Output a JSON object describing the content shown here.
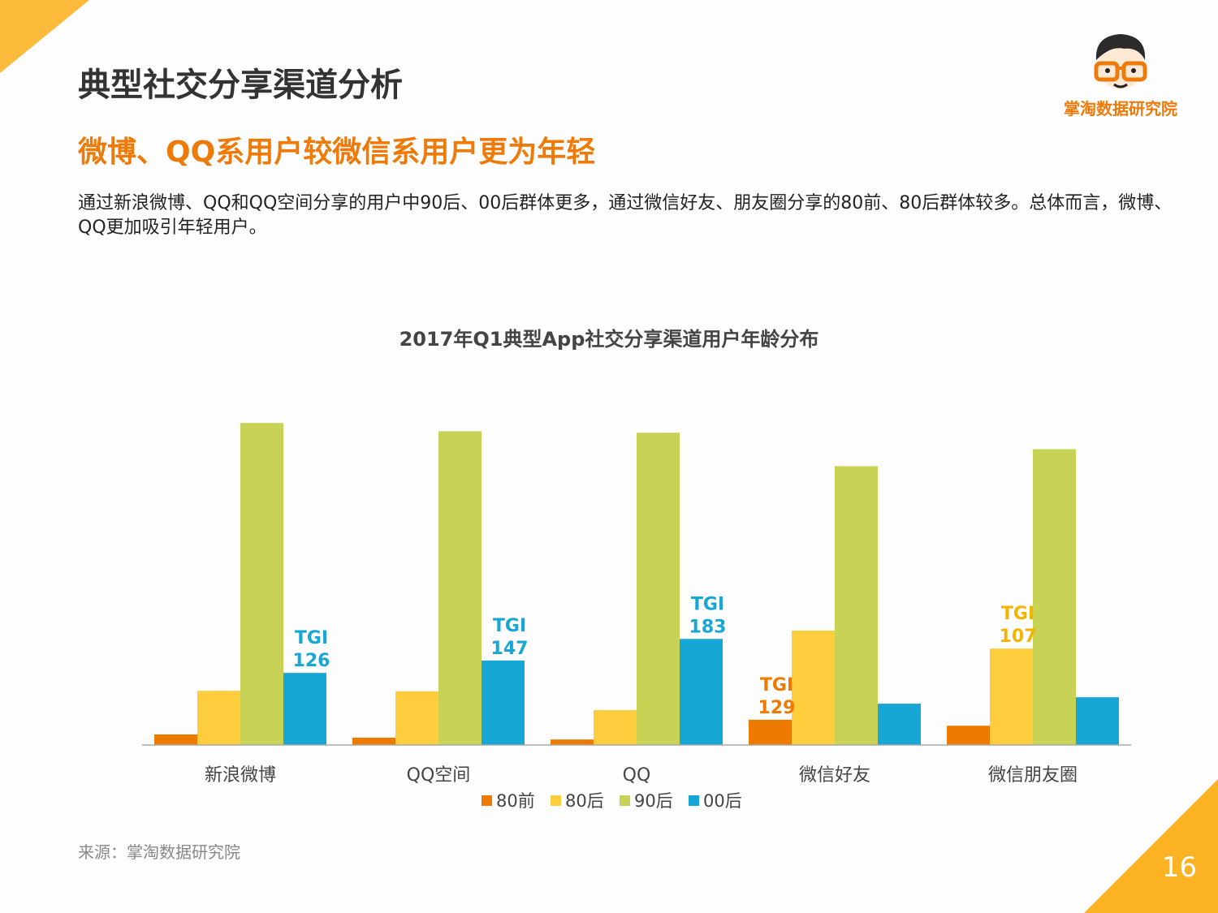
{
  "header": {
    "title": "典型社交分享渠道分析",
    "subtitle": "微博、QQ系用户较微信系用户更为年轻",
    "description": "通过新浪微博、QQ和QQ空间分享的用户中90后、00后群体更多，通过微信好友、朋友圈分享的80前、80后群体较多。总体而言，微博、QQ更加吸引年轻用户。"
  },
  "logo": {
    "text": "掌淘数据研究院"
  },
  "footer": {
    "source": "来源：掌淘数据研究院",
    "page_number": "16"
  },
  "colors": {
    "accent": "#ee7a0a",
    "corner": "#fbb324"
  },
  "chart_data": {
    "type": "bar",
    "title": "2017年Q1典型App社交分享渠道用户年龄分布",
    "categories": [
      "新浪微博",
      "QQ空间",
      "QQ",
      "微信好友",
      "微信朋友圈"
    ],
    "series": [
      {
        "name": "80前",
        "color": "#ee7a00",
        "values": [
          2.3,
          1.6,
          1.2,
          5.5,
          4.2
        ]
      },
      {
        "name": "80后",
        "color": "#fecd3e",
        "values": [
          11.8,
          11.7,
          7.6,
          24.9,
          21.0
        ]
      },
      {
        "name": "90后",
        "color": "#c8d255",
        "values": [
          70.1,
          68.3,
          68.0,
          60.7,
          64.4
        ]
      },
      {
        "name": "00后",
        "color": "#16a7d7",
        "values": [
          15.7,
          18.4,
          23.1,
          9.0,
          10.4
        ]
      }
    ],
    "unit": "%",
    "ylim": [
      0,
      75
    ],
    "grid": false,
    "legend": "bottom",
    "annotations": [
      {
        "category": "新浪微博",
        "series": "00后",
        "label": "TGI",
        "value": "126"
      },
      {
        "category": "QQ空间",
        "series": "00后",
        "label": "TGI",
        "value": "147"
      },
      {
        "category": "QQ",
        "series": "00后",
        "label": "TGI",
        "value": "183"
      },
      {
        "category": "微信好友",
        "series": "80前",
        "label": "TGI",
        "value": "129"
      },
      {
        "category": "微信朋友圈",
        "series": "80后",
        "label": "TGI",
        "value": "107"
      }
    ]
  }
}
